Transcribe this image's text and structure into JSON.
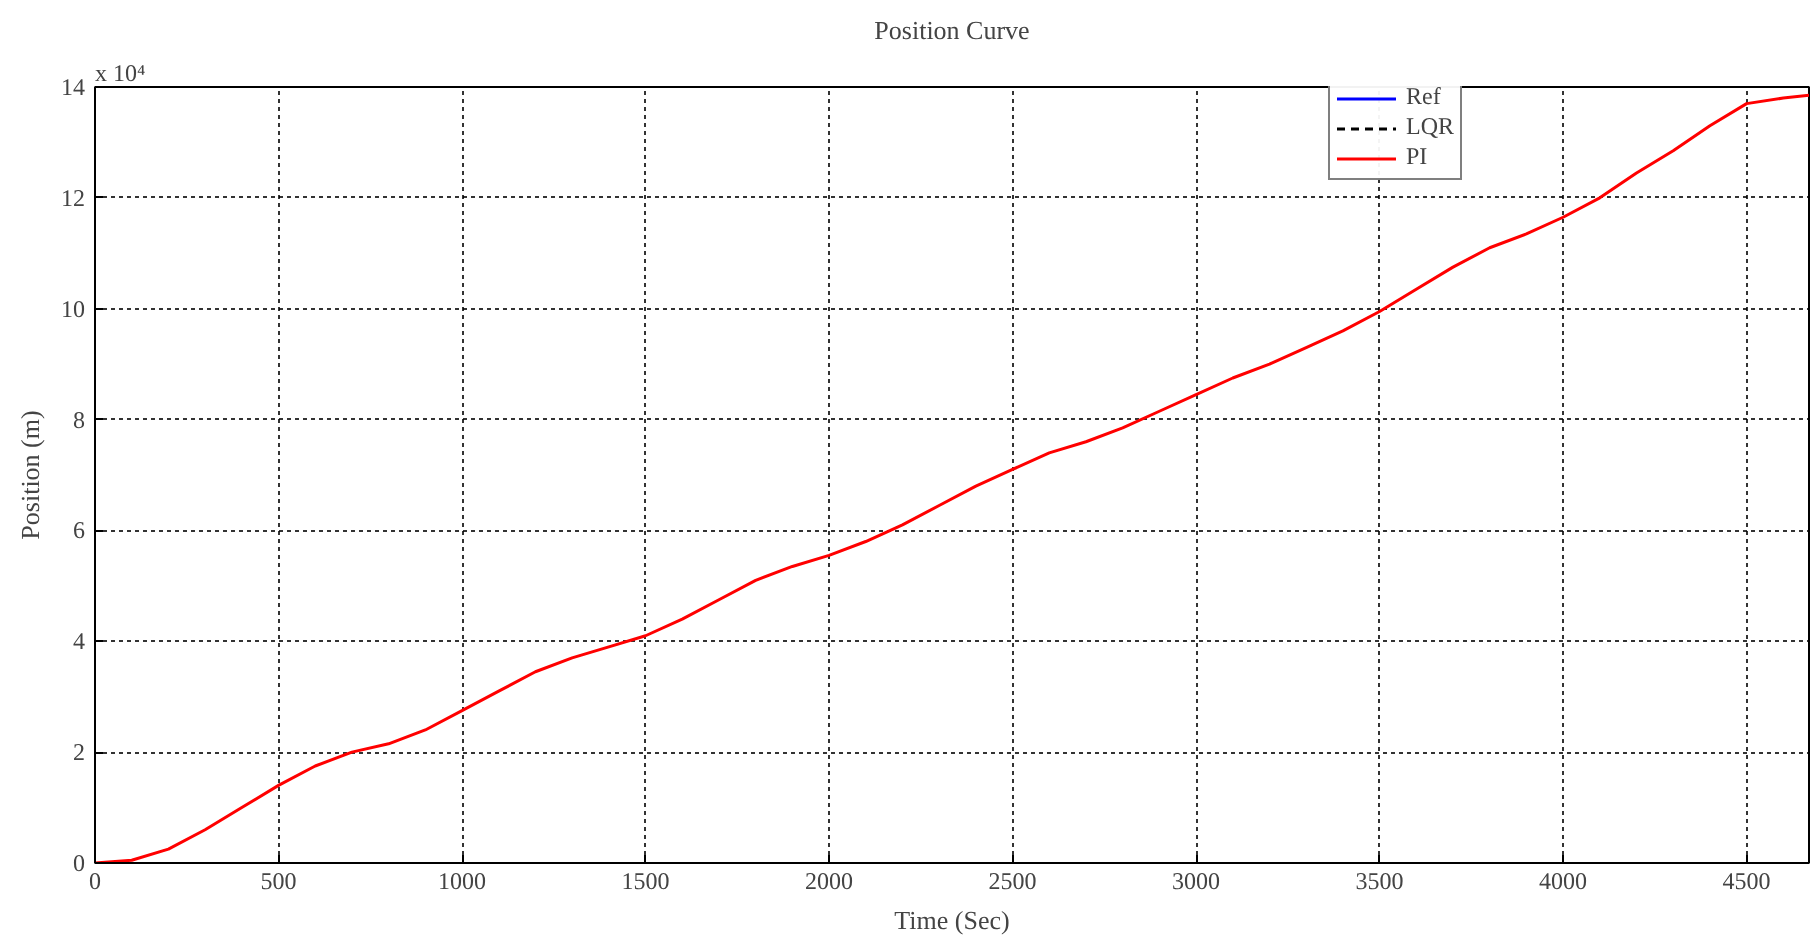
{
  "chart_data": {
    "type": "line",
    "title": "Position Curve",
    "xlabel": "Time (Sec)",
    "ylabel": "Position (m)",
    "annotations": [
      "x 10⁴"
    ],
    "x": [
      0,
      100,
      200,
      300,
      400,
      500,
      600,
      700,
      800,
      900,
      1000,
      1100,
      1200,
      1300,
      1400,
      1500,
      1600,
      1700,
      1800,
      1900,
      2000,
      2100,
      2200,
      2300,
      2400,
      2500,
      2600,
      2700,
      2800,
      2900,
      3000,
      3100,
      3200,
      3300,
      3400,
      3500,
      3600,
      3700,
      3800,
      3900,
      4000,
      4100,
      4200,
      4300,
      4400,
      4500,
      4600,
      4670
    ],
    "series": [
      {
        "name": "Ref",
        "color": "#0000ff",
        "line_style": "solid",
        "values": [
          null,
          null,
          null,
          null,
          null,
          null,
          null,
          null,
          null,
          null,
          null,
          null,
          null,
          null,
          null,
          null,
          null,
          null,
          null,
          null,
          null,
          null,
          null,
          null,
          null,
          null,
          null,
          null,
          null,
          null,
          null,
          null,
          null,
          null,
          null,
          null,
          null,
          null,
          null,
          null,
          null,
          null,
          null,
          null,
          null,
          null,
          null,
          null
        ]
      },
      {
        "name": "LQR",
        "color": "#000000",
        "line_style": "dashed",
        "values": [
          null,
          null,
          null,
          null,
          null,
          null,
          null,
          null,
          null,
          null,
          null,
          null,
          null,
          null,
          null,
          null,
          null,
          null,
          null,
          null,
          null,
          null,
          null,
          null,
          null,
          null,
          null,
          null,
          null,
          null,
          null,
          null,
          null,
          null,
          null,
          null,
          null,
          null,
          null,
          null,
          null,
          null,
          null,
          null,
          null,
          null,
          null,
          null
        ]
      },
      {
        "name": "PI",
        "color": "#ff0000",
        "line_style": "solid",
        "values": [
          0,
          0.05,
          0.25,
          0.6,
          1.0,
          1.4,
          1.75,
          2.0,
          2.15,
          2.4,
          2.75,
          3.1,
          3.45,
          3.7,
          3.9,
          4.1,
          4.4,
          4.75,
          5.1,
          5.35,
          5.55,
          5.8,
          6.1,
          6.45,
          6.8,
          7.1,
          7.4,
          7.6,
          7.85,
          8.15,
          8.45,
          8.75,
          9.0,
          9.3,
          9.6,
          9.95,
          10.35,
          10.75,
          11.1,
          11.35,
          11.65,
          12.0,
          12.45,
          12.85,
          13.3,
          13.7,
          13.8,
          13.85
        ]
      }
    ],
    "xlim": [
      0,
      4670
    ],
    "ylim": [
      0,
      14
    ],
    "xticks": [
      0,
      500,
      1000,
      1500,
      2000,
      2500,
      3000,
      3500,
      4000,
      4500
    ],
    "yticks": [
      0,
      2,
      4,
      6,
      8,
      10,
      12,
      14
    ],
    "grid": true,
    "legend": "top right"
  }
}
